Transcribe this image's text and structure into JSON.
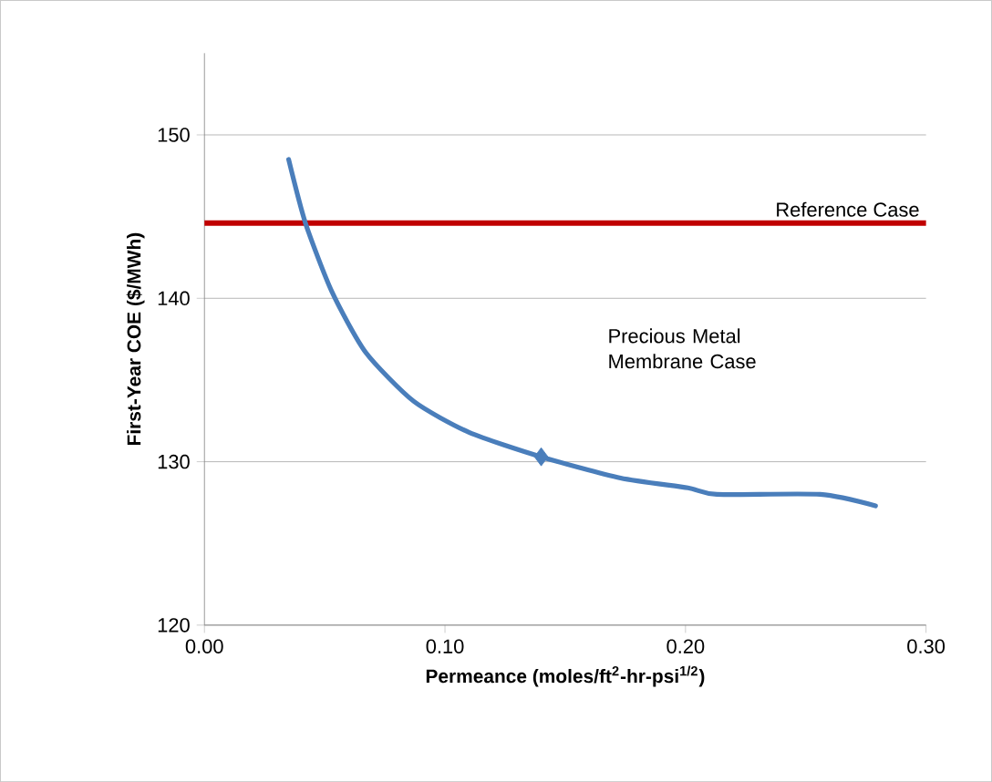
{
  "chart_data": {
    "type": "line",
    "xlabel": "Permeance (moles/ft$^{2}$-hr-psi$^{1/2}$)",
    "ylabel": "First-Year COE ($/MWh)",
    "xlim": [
      0,
      0.3
    ],
    "ylim": [
      120,
      155
    ],
    "xticks": [
      {
        "value": 0,
        "label": "0.00"
      },
      {
        "value": 0.1,
        "label": "0.10"
      },
      {
        "value": 0.2,
        "label": "0.20"
      },
      {
        "value": 0.3,
        "label": "0.30"
      }
    ],
    "yticks": [
      120,
      130,
      140,
      150
    ],
    "grid": "y",
    "line_style": "solid",
    "marker": "none",
    "series": [
      {
        "x": [
          0.035,
          0.042,
          0.053,
          0.067,
          0.087,
          0.11,
          0.14,
          0.173,
          0.201,
          0.213,
          0.256,
          0.279
        ],
        "values": [
          148.5,
          144.6,
          140.4,
          136.7,
          133.7,
          131.8,
          130.3,
          129.0,
          128.4,
          128.0,
          128.0,
          127.3
        ],
        "color": "#4a7ebb"
      },
      {
        "type": "scatter",
        "marker": "diamond",
        "x": [
          0.14
        ],
        "values": [
          130.3
        ],
        "color": "#4a7ebb"
      }
    ],
    "ref_lines": [
      {
        "axis": "y",
        "value": 144.6,
        "label": "Reference Case",
        "color": "#c00000"
      }
    ],
    "annotations": [
      "Precious Metal Membrane Case"
    ]
  }
}
